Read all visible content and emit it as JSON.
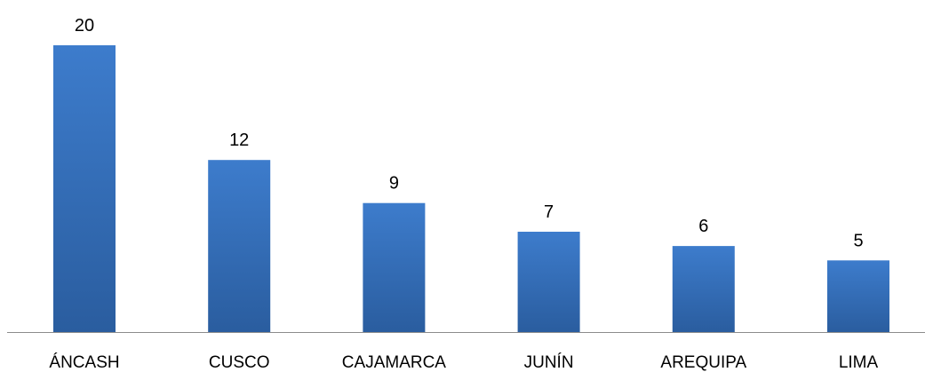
{
  "chart_data": {
    "type": "bar",
    "title": "",
    "xlabel": "",
    "ylabel": "",
    "categories": [
      "ÁNCASH",
      "CUSCO",
      "CAJAMARCA",
      "JUNÍN",
      "AREQUIPA",
      "LIMA"
    ],
    "values": [
      20,
      12,
      9,
      7,
      6,
      5
    ],
    "data_labels": [
      "20",
      "12",
      "9",
      "7",
      "6",
      "5"
    ],
    "ylim": [
      0,
      20
    ],
    "grid": false,
    "legend": "none",
    "colors": {
      "bar_top": "#3D7CCC",
      "bar_bottom": "#2A5D9F",
      "axis": "#8C8C8C",
      "text": "#000000"
    }
  }
}
